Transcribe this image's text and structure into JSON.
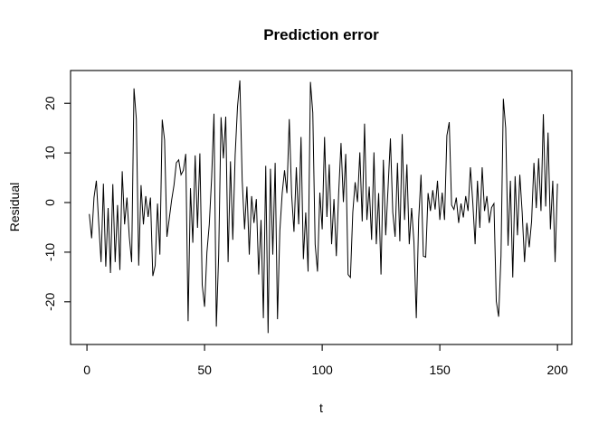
{
  "window": {
    "background": "#ffffff"
  },
  "chart_data": {
    "type": "line",
    "title": "Prediction error",
    "xlabel": "t",
    "ylabel": "Residual",
    "x_ticks": [
      0,
      50,
      100,
      150,
      200
    ],
    "y_ticks": [
      -20,
      -10,
      0,
      10,
      20
    ],
    "xlim": [
      -6.96,
      206.1
    ],
    "ylim": [
      -28.6,
      26.6
    ],
    "x_start": 1,
    "x_step": 1,
    "n_points": 200,
    "grid": false,
    "legend_position": "none",
    "line_color": "#000000",
    "axis_color": "#000000",
    "values": [
      -2.3,
      -7.2,
      1.0,
      4.4,
      -4.1,
      -12.0,
      3.8,
      -12.9,
      -1.1,
      -14.2,
      3.7,
      -12.0,
      -0.5,
      -13.6,
      6.3,
      -4.4,
      1.0,
      -6.9,
      -12.0,
      23.0,
      16.8,
      -12.7,
      3.5,
      -4.4,
      1.3,
      -2.9,
      1.0,
      -14.8,
      -12.7,
      -0.2,
      -10.5,
      16.7,
      12.6,
      -6.9,
      -3.2,
      0.5,
      3.5,
      8.0,
      8.6,
      5.6,
      6.5,
      9.8,
      -23.9,
      2.9,
      -8.1,
      9.5,
      -5.1,
      9.9,
      -16.6,
      -21.0,
      -10.0,
      -4.4,
      5.0,
      17.9,
      -25.0,
      -10.5,
      17.2,
      8.9,
      17.3,
      -12.0,
      8.3,
      -7.5,
      9.6,
      19.3,
      24.6,
      4.4,
      -5.4,
      3.2,
      -10.5,
      1.3,
      -4.1,
      0.7,
      -14.5,
      -3.5,
      -23.3,
      7.4,
      -26.3,
      6.8,
      -10.5,
      8.0,
      -23.5,
      -5.7,
      1.9,
      6.5,
      1.9,
      16.8,
      1.6,
      -5.9,
      7.1,
      -4.4,
      13.2,
      -11.4,
      -2.0,
      -13.9,
      24.3,
      18.1,
      -8.4,
      -13.9,
      2.0,
      -5.4,
      13.2,
      -2.9,
      7.7,
      -8.4,
      0.7,
      -10.8,
      1.9,
      12.0,
      0.1,
      9.8,
      -14.5,
      -15.1,
      -2.0,
      4.1,
      0.1,
      10.1,
      -3.8,
      15.9,
      -3.5,
      3.2,
      -7.5,
      10.1,
      -8.4,
      1.9,
      -14.5,
      8.6,
      -6.6,
      3.0,
      12.9,
      -2.0,
      -6.9,
      8.0,
      -7.8,
      13.8,
      -3.5,
      7.7,
      -8.4,
      -1.1,
      -8.0,
      -23.3,
      -3.5,
      5.6,
      -10.8,
      -11.0,
      1.9,
      -1.7,
      2.5,
      -1.4,
      4.4,
      -3.5,
      2.0,
      -3.5,
      13.5,
      16.2,
      -0.5,
      -1.4,
      1.0,
      -4.1,
      -0.2,
      -3.0,
      1.3,
      -1.7,
      7.1,
      0.1,
      -8.4,
      4.4,
      -5.1,
      7.1,
      -1.7,
      1.3,
      -4.1,
      -1.0,
      -0.2,
      -19.9,
      -23.0,
      -10.8,
      20.9,
      15.0,
      -8.7,
      4.4,
      -15.1,
      5.3,
      -6.6,
      5.6,
      -2.0,
      -12.0,
      -4.1,
      -9.0,
      -3.8,
      8.0,
      -1.1,
      8.9,
      -1.7,
      17.8,
      -0.8,
      14.1,
      -5.4,
      4.4,
      -12.0,
      3.8
    ]
  }
}
